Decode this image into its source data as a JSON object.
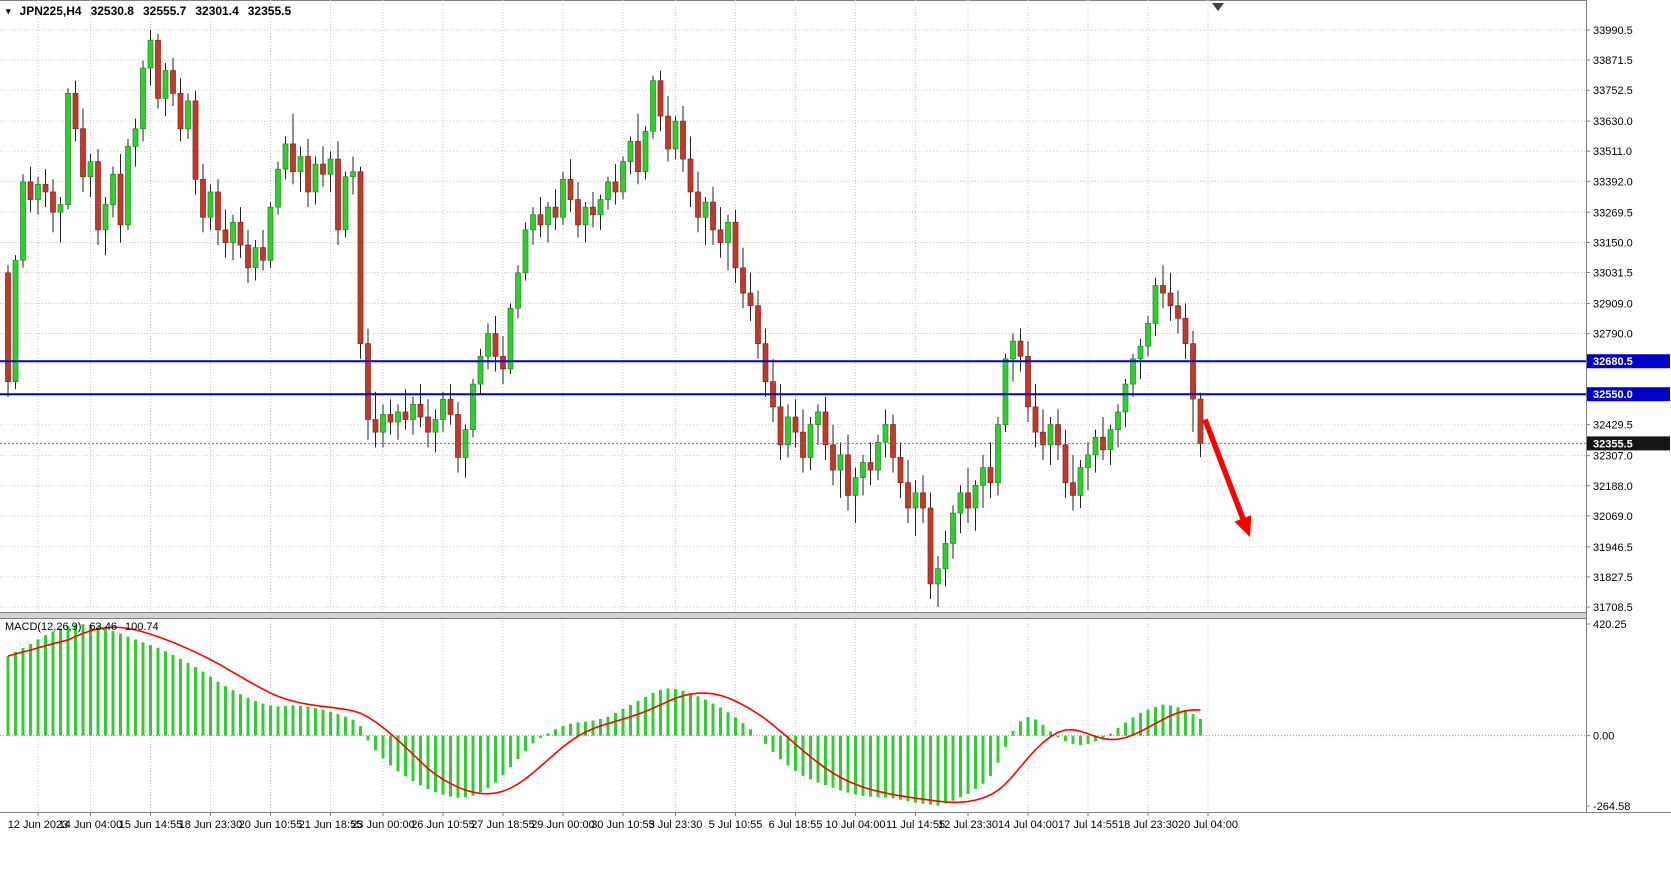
{
  "chart_data": {
    "type": "candlestick",
    "symbol_timeframe": "JPN225,H4",
    "ohlc": {
      "open": "32530.8",
      "high": "32555.7",
      "low": "32301.4",
      "close": "32355.5"
    },
    "price_axis_labels": [
      "33990.5",
      "33871.5",
      "33752.5",
      "33630.0",
      "33511.0",
      "33392.0",
      "33269.5",
      "33150.0",
      "33031.5",
      "32909.0",
      "32790.0",
      "32429.5",
      "32307.0",
      "32188.0",
      "32069.0",
      "31946.5",
      "31827.5",
      "31708.5"
    ],
    "time_axis": [
      {
        "label": "12 Jun 2023",
        "i": 4
      },
      {
        "label": "14 Jun 04:00",
        "i": 11
      },
      {
        "label": "15 Jun 14:55",
        "i": 19
      },
      {
        "label": "18 Jun 23:30",
        "i": 27
      },
      {
        "label": "20 Jun 10:55",
        "i": 35
      },
      {
        "label": "21 Jun 18:55",
        "i": 43
      },
      {
        "label": "23 Jun 00:00",
        "i": 50
      },
      {
        "label": "26 Jun 10:55",
        "i": 58
      },
      {
        "label": "27 Jun 18:55",
        "i": 66
      },
      {
        "label": "29 Jun 00:00",
        "i": 74
      },
      {
        "label": "30 Jun 10:55",
        "i": 82
      },
      {
        "label": "3 Jul 23:30",
        "i": 89
      },
      {
        "label": "5 Jul 10:55",
        "i": 97
      },
      {
        "label": "6 Jul 18:55",
        "i": 105
      },
      {
        "label": "10 Jul 04:00",
        "i": 113
      },
      {
        "label": "11 Jul 14:55",
        "i": 121
      },
      {
        "label": "12 Jul 23:30",
        "i": 128
      },
      {
        "label": "14 Jul 04:00",
        "i": 136
      },
      {
        "label": "17 Jul 14:55",
        "i": 144
      },
      {
        "label": "18 Jul 23:30",
        "i": 152
      },
      {
        "label": "20 Jul 04:00",
        "i": 160
      }
    ],
    "candles": [
      [
        33030,
        33060,
        32540,
        32600
      ],
      [
        32600,
        33100,
        32570,
        33080
      ],
      [
        33080,
        33420,
        33050,
        33390
      ],
      [
        33390,
        33450,
        33270,
        33320
      ],
      [
        33320,
        33410,
        33260,
        33380
      ],
      [
        33380,
        33440,
        33290,
        33350
      ],
      [
        33350,
        33400,
        33190,
        33270
      ],
      [
        33270,
        33330,
        33150,
        33300
      ],
      [
        33300,
        33760,
        33280,
        33740
      ],
      [
        33740,
        33790,
        33550,
        33600
      ],
      [
        33600,
        33680,
        33350,
        33410
      ],
      [
        33410,
        33500,
        33330,
        33470
      ],
      [
        33470,
        33520,
        33140,
        33200
      ],
      [
        33200,
        33330,
        33100,
        33300
      ],
      [
        33300,
        33450,
        33250,
        33420
      ],
      [
        33420,
        33500,
        33150,
        33220
      ],
      [
        33220,
        33560,
        33200,
        33530
      ],
      [
        33530,
        33640,
        33450,
        33600
      ],
      [
        33600,
        33870,
        33550,
        33840
      ],
      [
        33840,
        33990,
        33770,
        33950
      ],
      [
        33950,
        33975,
        33680,
        33720
      ],
      [
        33720,
        33860,
        33650,
        33830
      ],
      [
        33830,
        33880,
        33690,
        33740
      ],
      [
        33740,
        33800,
        33550,
        33600
      ],
      [
        33600,
        33740,
        33560,
        33710
      ],
      [
        33710,
        33750,
        33340,
        33400
      ],
      [
        33400,
        33460,
        33190,
        33250
      ],
      [
        33250,
        33380,
        33200,
        33350
      ],
      [
        33350,
        33400,
        33140,
        33200
      ],
      [
        33200,
        33280,
        33090,
        33150
      ],
      [
        33150,
        33260,
        33080,
        33230
      ],
      [
        33230,
        33290,
        33090,
        33140
      ],
      [
        33140,
        33200,
        32990,
        33050
      ],
      [
        33050,
        33160,
        33000,
        33130
      ],
      [
        33130,
        33200,
        33040,
        33080
      ],
      [
        33080,
        33310,
        33050,
        33290
      ],
      [
        33290,
        33470,
        33260,
        33440
      ],
      [
        33440,
        33570,
        33400,
        33540
      ],
      [
        33540,
        33660,
        33380,
        33430
      ],
      [
        33430,
        33530,
        33350,
        33490
      ],
      [
        33490,
        33560,
        33290,
        33350
      ],
      [
        33350,
        33490,
        33300,
        33460
      ],
      [
        33460,
        33530,
        33370,
        33420
      ],
      [
        33420,
        33510,
        33350,
        33480
      ],
      [
        33480,
        33550,
        33140,
        33200
      ],
      [
        33200,
        33430,
        33170,
        33410
      ],
      [
        33410,
        33490,
        33340,
        33430
      ],
      [
        33430,
        33450,
        32690,
        32750
      ],
      [
        32750,
        32810,
        32370,
        32450
      ],
      [
        32450,
        32560,
        32340,
        32400
      ],
      [
        32400,
        32510,
        32340,
        32470
      ],
      [
        32470,
        32530,
        32390,
        32440
      ],
      [
        32440,
        32510,
        32370,
        32480
      ],
      [
        32480,
        32570,
        32410,
        32450
      ],
      [
        32450,
        32540,
        32390,
        32510
      ],
      [
        32510,
        32590,
        32420,
        32460
      ],
      [
        32460,
        32530,
        32340,
        32400
      ],
      [
        32400,
        32490,
        32320,
        32450
      ],
      [
        32450,
        32560,
        32400,
        32530
      ],
      [
        32530,
        32590,
        32430,
        32470
      ],
      [
        32470,
        32520,
        32240,
        32300
      ],
      [
        32300,
        32430,
        32220,
        32410
      ],
      [
        32410,
        32610,
        32380,
        32590
      ],
      [
        32590,
        32730,
        32550,
        32700
      ],
      [
        32700,
        32830,
        32650,
        32790
      ],
      [
        32790,
        32860,
        32640,
        32700
      ],
      [
        32700,
        32780,
        32590,
        32650
      ],
      [
        32650,
        32910,
        32630,
        32890
      ],
      [
        32890,
        33060,
        32850,
        33030
      ],
      [
        33030,
        33230,
        33000,
        33200
      ],
      [
        33200,
        33290,
        33140,
        33260
      ],
      [
        33260,
        33330,
        33170,
        33220
      ],
      [
        33220,
        33310,
        33150,
        33290
      ],
      [
        33290,
        33360,
        33200,
        33250
      ],
      [
        33250,
        33430,
        33220,
        33400
      ],
      [
        33400,
        33480,
        33270,
        33320
      ],
      [
        33320,
        33390,
        33170,
        33220
      ],
      [
        33220,
        33310,
        33150,
        33290
      ],
      [
        33290,
        33350,
        33210,
        33260
      ],
      [
        33260,
        33340,
        33200,
        33320
      ],
      [
        33320,
        33410,
        33280,
        33390
      ],
      [
        33390,
        33460,
        33300,
        33350
      ],
      [
        33350,
        33490,
        33320,
        33470
      ],
      [
        33470,
        33570,
        33420,
        33550
      ],
      [
        33550,
        33660,
        33380,
        33430
      ],
      [
        33430,
        33610,
        33400,
        33590
      ],
      [
        33590,
        33810,
        33560,
        33790
      ],
      [
        33790,
        33830,
        33590,
        33650
      ],
      [
        33650,
        33730,
        33470,
        33520
      ],
      [
        33520,
        33650,
        33480,
        33630
      ],
      [
        33630,
        33690,
        33430,
        33480
      ],
      [
        33480,
        33570,
        33290,
        33350
      ],
      [
        33350,
        33430,
        33190,
        33250
      ],
      [
        33250,
        33330,
        33140,
        33310
      ],
      [
        33310,
        33370,
        33140,
        33200
      ],
      [
        33200,
        33290,
        33090,
        33150
      ],
      [
        33150,
        33260,
        33040,
        33230
      ],
      [
        33230,
        33280,
        32990,
        33050
      ],
      [
        33050,
        33130,
        32890,
        32950
      ],
      [
        32950,
        33030,
        32840,
        32900
      ],
      [
        32900,
        32960,
        32690,
        32750
      ],
      [
        32750,
        32810,
        32540,
        32600
      ],
      [
        32600,
        32690,
        32440,
        32500
      ],
      [
        32500,
        32590,
        32290,
        32350
      ],
      [
        32350,
        32510,
        32300,
        32460
      ],
      [
        32460,
        32530,
        32340,
        32400
      ],
      [
        32400,
        32490,
        32240,
        32300
      ],
      [
        32300,
        32460,
        32250,
        32430
      ],
      [
        32430,
        32510,
        32350,
        32480
      ],
      [
        32480,
        32540,
        32290,
        32350
      ],
      [
        32350,
        32430,
        32190,
        32250
      ],
      [
        32250,
        32360,
        32140,
        32310
      ],
      [
        32310,
        32390,
        32090,
        32150
      ],
      [
        32150,
        32260,
        32040,
        32220
      ],
      [
        32220,
        32310,
        32150,
        32280
      ],
      [
        32280,
        32360,
        32190,
        32250
      ],
      [
        32250,
        32390,
        32210,
        32360
      ],
      [
        32360,
        32490,
        32300,
        32430
      ],
      [
        32430,
        32470,
        32240,
        32300
      ],
      [
        32300,
        32360,
        32140,
        32200
      ],
      [
        32200,
        32290,
        32040,
        32100
      ],
      [
        32100,
        32210,
        31990,
        32160
      ],
      [
        32160,
        32230,
        32040,
        32100
      ],
      [
        32100,
        32160,
        31740,
        31800
      ],
      [
        31800,
        31910,
        31708,
        31860
      ],
      [
        31860,
        32010,
        31790,
        31960
      ],
      [
        31960,
        32110,
        31900,
        32080
      ],
      [
        32080,
        32190,
        32000,
        32160
      ],
      [
        32160,
        32260,
        32040,
        32100
      ],
      [
        32100,
        32210,
        32010,
        32190
      ],
      [
        32190,
        32310,
        32100,
        32260
      ],
      [
        32260,
        32360,
        32140,
        32200
      ],
      [
        32200,
        32460,
        32150,
        32430
      ],
      [
        32430,
        32710,
        32400,
        32690
      ],
      [
        32690,
        32790,
        32600,
        32760
      ],
      [
        32760,
        32810,
        32640,
        32700
      ],
      [
        32700,
        32760,
        32440,
        32500
      ],
      [
        32500,
        32590,
        32340,
        32400
      ],
      [
        32400,
        32490,
        32290,
        32350
      ],
      [
        32350,
        32460,
        32270,
        32430
      ],
      [
        32430,
        32490,
        32290,
        32350
      ],
      [
        32350,
        32410,
        32140,
        32200
      ],
      [
        32200,
        32310,
        32090,
        32150
      ],
      [
        32150,
        32290,
        32100,
        32260
      ],
      [
        32260,
        32360,
        32170,
        32310
      ],
      [
        32310,
        32410,
        32240,
        32380
      ],
      [
        32380,
        32460,
        32290,
        32330
      ],
      [
        32330,
        32430,
        32270,
        32410
      ],
      [
        32410,
        32510,
        32340,
        32480
      ],
      [
        32480,
        32610,
        32420,
        32590
      ],
      [
        32590,
        32710,
        32540,
        32690
      ],
      [
        32690,
        32770,
        32610,
        32740
      ],
      [
        32740,
        32860,
        32700,
        32830
      ],
      [
        32830,
        33010,
        32780,
        32980
      ],
      [
        32980,
        33060,
        32890,
        32950
      ],
      [
        32950,
        33030,
        32840,
        32900
      ],
      [
        32900,
        32960,
        32790,
        32850
      ],
      [
        32850,
        32910,
        32690,
        32750
      ],
      [
        32750,
        32800,
        32400,
        32531
      ],
      [
        32530.8,
        32555.7,
        32301.4,
        32355.5
      ]
    ],
    "hlines": [
      {
        "price": "32680.5"
      },
      {
        "price": "32550.0"
      }
    ],
    "bid_price": "32355.5",
    "arrow": {
      "from_i": 159.6,
      "from_price": 32450,
      "to_i": 165.6,
      "to_price": 31985
    },
    "macd": {
      "name": "MACD(12,26,9)",
      "main_value": "63.46",
      "signal_value": "100.74",
      "axis_labels": [
        "420.25",
        "0.00",
        "-264.58"
      ],
      "values": [
        300,
        315,
        330,
        345,
        362,
        378,
        392,
        404,
        413,
        419,
        420,
        417,
        411,
        403,
        394,
        384,
        373,
        362,
        351,
        341,
        331,
        318,
        304,
        289,
        274,
        258,
        241,
        222,
        203,
        186,
        171,
        156,
        142,
        131,
        121,
        114,
        110,
        111,
        114,
        112,
        109,
        104,
        98,
        90,
        81,
        71,
        60,
        36,
        -18,
        -55,
        -86,
        -112,
        -133,
        -153,
        -171,
        -187,
        -201,
        -213,
        -222,
        -229,
        -234,
        -232,
        -226,
        -214,
        -198,
        -176,
        -149,
        -119,
        -88,
        -58,
        -29,
        -8,
        9,
        24,
        37,
        45,
        50,
        53,
        57,
        63,
        71,
        86,
        101,
        116,
        131,
        146,
        161,
        172,
        178,
        176,
        169,
        159,
        148,
        136,
        121,
        106,
        88,
        69,
        47,
        24,
        0,
        -31,
        -61,
        -89,
        -112,
        -132,
        -151,
        -164,
        -176,
        -186,
        -196,
        -206,
        -214,
        -221,
        -226,
        -229,
        -231,
        -233,
        -236,
        -241,
        -247,
        -252,
        -256,
        -260,
        -263,
        -255,
        -245,
        -232,
        -219,
        -200,
        -181,
        -152,
        -102,
        -42,
        18,
        54,
        70,
        61,
        41,
        16,
        -6,
        -21,
        -31,
        -36,
        -31,
        -21,
        -10,
        8,
        29,
        49,
        69,
        85,
        98,
        108,
        117,
        114,
        107,
        96,
        81,
        63.46
      ]
    }
  },
  "colors": {
    "background": "#FFFFFF",
    "grid": "#C8C8C8",
    "candle_up": "#32CD32",
    "candle_up_border": "#1A8A1A",
    "candle_down": "#C03A2B",
    "candle_down_border": "#8A1F16",
    "wick": "#222222",
    "hline": "#0000C8",
    "hline_tag_bg": "#0000C8",
    "bid_line": "#777777",
    "bid_tag_bg": "#151515",
    "tag_text": "#FFFFFF",
    "axis_text": "#000000",
    "macd_histogram": "#32CD32",
    "macd_signal": "#FF0000",
    "annotation_arrow": "#FF0000",
    "panel_border": "#808080",
    "separator_fill": "#D6D3CC"
  }
}
